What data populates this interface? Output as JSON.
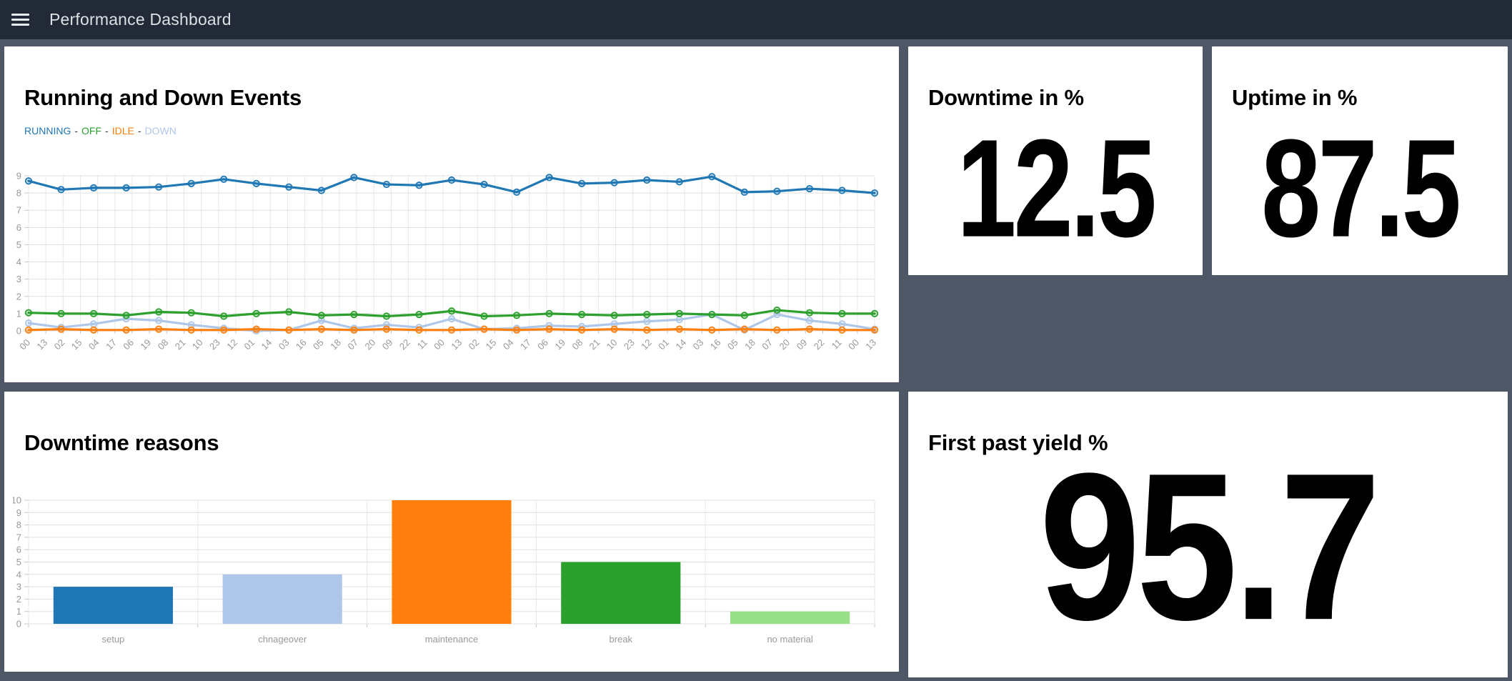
{
  "navbar": {
    "title": "Performance Dashboard"
  },
  "panels": {
    "events": {
      "title": "Running and Down Events"
    },
    "downtime": {
      "title": "Downtime in %",
      "value": "12.5"
    },
    "uptime": {
      "title": "Uptime in %",
      "value": "87.5"
    },
    "reasons": {
      "title": "Downtime reasons"
    },
    "fpy": {
      "title": "First past yield %",
      "value": "95.7"
    }
  },
  "colors": {
    "navbar_bg": "#232a37",
    "page_bg": "#4d5766",
    "panel_bg": "#ffffff",
    "grid_h": "#e0e0e0",
    "grid_v": "#e8e8e8",
    "tick": "#c8c8c8",
    "axis_text": "#999999"
  },
  "chart_data": [
    {
      "type": "line",
      "title": "Running and Down Events",
      "legend_position": "top",
      "legend_separator": "-",
      "grid": true,
      "ylim": [
        0,
        9
      ],
      "y_ticks": [
        0,
        1,
        2,
        3,
        4,
        5,
        6,
        7,
        8,
        9
      ],
      "x_tick_labels": [
        "00",
        "13",
        "02",
        "15",
        "04",
        "17",
        "06",
        "19",
        "08",
        "21",
        "10",
        "23",
        "12",
        "01",
        "14",
        "03",
        "16",
        "05",
        "18",
        "07",
        "20",
        "09",
        "22",
        "11",
        "00",
        "13",
        "02",
        "15",
        "04",
        "17",
        "06",
        "19",
        "08",
        "21",
        "10",
        "23",
        "12",
        "01",
        "14",
        "03",
        "16",
        "05",
        "18",
        "07",
        "20",
        "09",
        "22",
        "11",
        "00",
        "13"
      ],
      "series": [
        {
          "name": "RUNNING",
          "color": "#1f77b4",
          "values": [
            8.7,
            8.2,
            8.3,
            8.3,
            8.35,
            8.55,
            8.8,
            8.55,
            8.35,
            8.15,
            8.9,
            8.5,
            8.45,
            8.75,
            8.5,
            8.05,
            8.9,
            8.55,
            8.6,
            8.75,
            8.65,
            8.95,
            8.05,
            8.1,
            8.25,
            8.15,
            8.0
          ]
        },
        {
          "name": "OFF",
          "color": "#2ca02c",
          "values": [
            1.05,
            1.0,
            1.0,
            0.9,
            1.1,
            1.05,
            0.85,
            1.0,
            1.1,
            0.9,
            0.95,
            0.85,
            0.95,
            1.15,
            0.85,
            0.9,
            1.0,
            0.95,
            0.9,
            0.95,
            1.0,
            0.95,
            0.9,
            1.2,
            1.05,
            1.0,
            1.0
          ]
        },
        {
          "name": "IDLE",
          "color": "#ff7f0e",
          "values": [
            0.05,
            0.1,
            0.05,
            0.05,
            0.1,
            0.05,
            0.05,
            0.1,
            0.05,
            0.1,
            0.05,
            0.1,
            0.05,
            0.05,
            0.1,
            0.05,
            0.1,
            0.05,
            0.1,
            0.05,
            0.1,
            0.05,
            0.1,
            0.05,
            0.1,
            0.05,
            0.05
          ]
        },
        {
          "name": "DOWN",
          "color": "#aec7e8",
          "values": [
            0.45,
            0.2,
            0.4,
            0.7,
            0.6,
            0.35,
            0.15,
            0.0,
            0.05,
            0.6,
            0.15,
            0.35,
            0.2,
            0.7,
            0.1,
            0.15,
            0.3,
            0.25,
            0.4,
            0.55,
            0.65,
            0.95,
            0.05,
            0.95,
            0.6,
            0.4,
            0.1
          ]
        }
      ]
    },
    {
      "type": "bar",
      "title": "Downtime reasons",
      "grid": true,
      "ylim": [
        0,
        10
      ],
      "y_ticks": [
        0,
        1,
        2,
        3,
        4,
        5,
        6,
        7,
        8,
        9,
        10
      ],
      "categories": [
        "setup",
        "chnageover",
        "maintenance",
        "break",
        "no material"
      ],
      "values": [
        3,
        4,
        10,
        5,
        1
      ],
      "colors": [
        "#1f77b4",
        "#aec7e8",
        "#ff7f0e",
        "#2ca02c",
        "#98df8a"
      ],
      "xlabel": "",
      "ylabel": ""
    }
  ]
}
